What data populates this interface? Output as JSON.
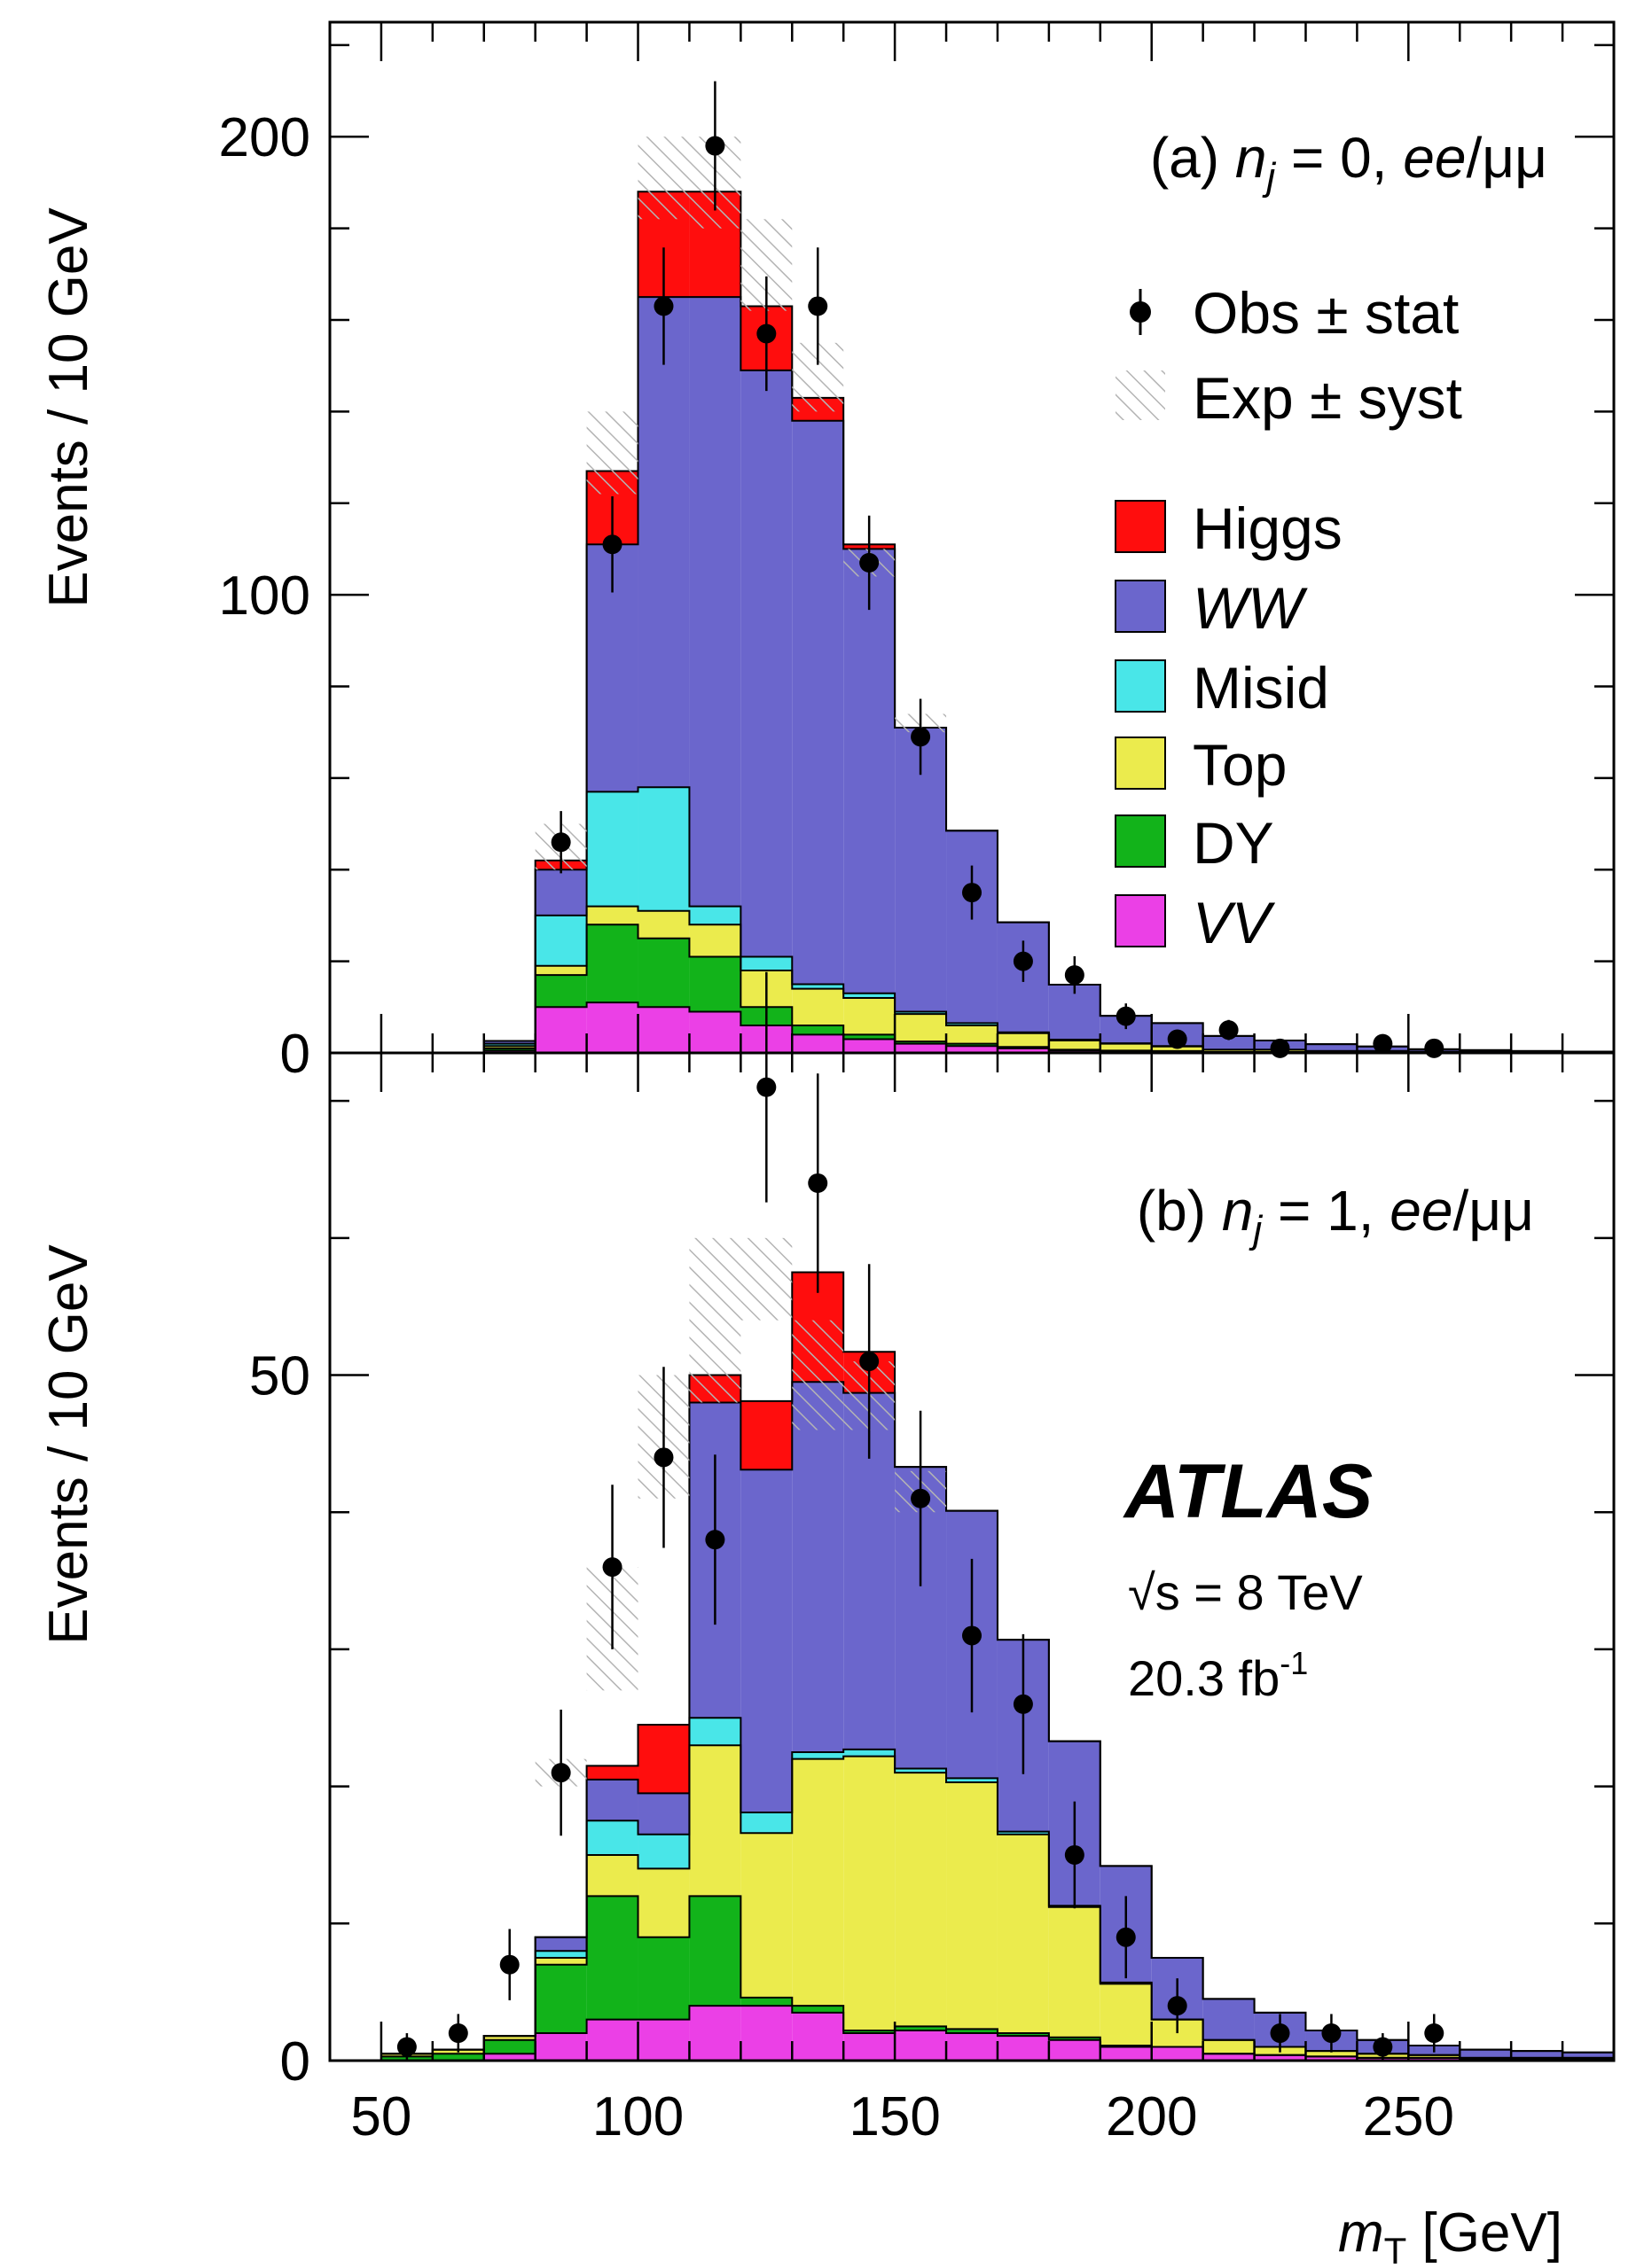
{
  "panel_a_label": "(a) n_j = 0, ee/μμ",
  "panel_b_label": "(b) n_j = 1, ee/μμ",
  "experiment": "ATLAS",
  "energy": "√s = 8 TeV",
  "luminosity_text": "20.3 fb",
  "luminosity_sup": "-1",
  "x_axis_label": "m_T [GeV]",
  "y_axis_label": "Events / 10 GeV",
  "legend": [
    {
      "key": "obs",
      "label": "Obs ± stat",
      "symbol": "marker"
    },
    {
      "key": "syst",
      "label": "Exp ± syst",
      "symbol": "hatch"
    },
    {
      "key": "higgs",
      "label": "Higgs",
      "color": "#ff0d0d",
      "italic": false
    },
    {
      "key": "ww",
      "label": "WW",
      "color": "#6b66cc",
      "italic": true
    },
    {
      "key": "misid",
      "label": "Misid",
      "color": "#49e6e8",
      "italic": false
    },
    {
      "key": "top",
      "label": "Top",
      "color": "#ebeb4d",
      "italic": false
    },
    {
      "key": "dy",
      "label": "DY",
      "color": "#12b31a",
      "italic": false
    },
    {
      "key": "vv",
      "label": "VV",
      "color": "#eb40e6",
      "italic": true
    }
  ],
  "chart_data": [
    {
      "type": "bar",
      "stacked": true,
      "panel": "a",
      "label": "(a) n_j = 0, ee/μμ",
      "bin_edges": [
        50,
        60,
        70,
        80,
        90,
        100,
        110,
        120,
        130,
        140,
        150,
        160,
        170,
        180,
        190,
        200,
        210,
        220,
        230,
        240,
        250,
        260,
        270,
        280,
        290
      ],
      "series": [
        {
          "key": "vv",
          "name": "VV",
          "values": [
            0,
            0,
            0.5,
            10,
            11,
            10,
            9,
            6,
            4,
            3,
            2,
            1.5,
            1,
            0.5,
            0.4,
            0.3,
            0.2,
            0.2,
            0.1,
            0.1,
            0.1,
            0.1,
            0,
            0
          ]
        },
        {
          "key": "dy",
          "name": "DY",
          "values": [
            0,
            0,
            0.5,
            7,
            17,
            15,
            12,
            4,
            2,
            1,
            0.5,
            0.5,
            0.3,
            0.2,
            0.1,
            0.1,
            0,
            0,
            0,
            0,
            0,
            0,
            0,
            0
          ]
        },
        {
          "key": "top",
          "name": "Top",
          "values": [
            0,
            0,
            0.5,
            2,
            4,
            6,
            7,
            8,
            8,
            8,
            6,
            4,
            3,
            2,
            1.5,
            1,
            0.5,
            0.5,
            0.3,
            0.3,
            0.2,
            0.1,
            0.1,
            0.1
          ]
        },
        {
          "key": "misid",
          "name": "Misid",
          "values": [
            0,
            0,
            0.5,
            11,
            25,
            27,
            4,
            3,
            1,
            1,
            0.5,
            0.5,
            0.2,
            0.2,
            0.1,
            0.1,
            0,
            0,
            0,
            0,
            0,
            0,
            0,
            0
          ]
        },
        {
          "key": "ww",
          "name": "WW",
          "values": [
            0,
            0,
            0.6,
            10,
            54,
            107,
            133,
            128,
            123,
            97,
            62,
            42,
            24,
            12,
            6,
            5,
            3,
            2,
            1.5,
            1,
            0.5,
            0.4,
            0.3,
            0.2
          ]
        },
        {
          "key": "higgs",
          "name": "Higgs",
          "values": [
            0,
            0,
            0,
            2,
            16,
            23,
            23,
            14,
            5,
            1,
            0,
            0,
            0,
            0,
            0,
            0,
            0,
            0,
            0,
            0,
            0,
            0,
            0,
            0
          ]
        }
      ],
      "syst_band": [
        [
          85,
          40,
          50
        ],
        [
          95,
          122,
          140
        ],
        [
          105,
          182,
          200
        ],
        [
          115,
          180,
          200
        ],
        [
          125,
          162,
          182
        ],
        [
          135,
          140,
          155
        ],
        [
          145,
          104,
          110
        ],
        [
          155,
          70,
          74
        ]
      ],
      "data_points": {
        "x": [
          85,
          95,
          105,
          115,
          125,
          135,
          145,
          155,
          165,
          175,
          185,
          195,
          205,
          215,
          225,
          245,
          255
        ],
        "y": [
          46,
          111,
          163,
          198,
          157,
          163,
          107,
          69,
          35,
          20,
          17,
          8,
          3,
          5,
          1,
          2,
          1
        ],
        "err": [
          6.8,
          10.5,
          12.8,
          14.1,
          12.5,
          12.8,
          10.3,
          8.3,
          5.9,
          4.5,
          4.1,
          2.8,
          1.7,
          2.2,
          1.0,
          1.4,
          1.0
        ]
      },
      "xlim": [
        40,
        290
      ],
      "ylim": [
        0,
        225
      ],
      "y_ticks": [
        0,
        100,
        200
      ],
      "ylabel": "Events / 10 GeV"
    },
    {
      "type": "bar",
      "stacked": true,
      "panel": "b",
      "label": "(b) n_j = 1, ee/μμ",
      "bin_edges": [
        50,
        60,
        70,
        80,
        90,
        100,
        110,
        120,
        130,
        140,
        150,
        160,
        170,
        180,
        190,
        200,
        210,
        220,
        230,
        240,
        250,
        260,
        270,
        280,
        290
      ],
      "series": [
        {
          "key": "vv",
          "name": "VV",
          "values": [
            0,
            0,
            0.5,
            2,
            3,
            3,
            4,
            4,
            3.5,
            2,
            2.2,
            2,
            1.8,
            1.5,
            1,
            1,
            0.5,
            0.4,
            0.3,
            0.2,
            0.2,
            0.1,
            0.1,
            0.1
          ]
        },
        {
          "key": "dy",
          "name": "DY",
          "values": [
            0.3,
            0.5,
            1,
            5,
            9,
            6,
            8,
            0.6,
            0.5,
            0.2,
            0.3,
            0.3,
            0.2,
            0.2,
            0.1,
            0,
            0,
            0,
            0,
            0,
            0,
            0,
            0,
            0
          ]
        },
        {
          "key": "top",
          "name": "Top",
          "values": [
            0.2,
            0.3,
            0.3,
            0.5,
            3,
            5,
            11,
            12,
            18,
            20,
            18.5,
            18,
            14.5,
            9.5,
            4.5,
            2,
            1,
            0.6,
            0.4,
            0.3,
            0.2,
            0.1,
            0.1,
            0.1
          ]
        },
        {
          "key": "misid",
          "name": "Misid",
          "values": [
            0,
            0,
            0,
            0.5,
            2.5,
            2.5,
            2,
            1.5,
            0.5,
            0.5,
            0.3,
            0.3,
            0.2,
            0.1,
            0.1,
            0,
            0,
            0,
            0,
            0,
            0,
            0,
            0,
            0
          ]
        },
        {
          "key": "ww",
          "name": "WW",
          "values": [
            0,
            0,
            0,
            1,
            3,
            3,
            23,
            25,
            27,
            26,
            22,
            19.5,
            14,
            12,
            8.5,
            4.5,
            3,
            2.5,
            1.5,
            1,
            0.7,
            0.6,
            0.5,
            0.4
          ]
        },
        {
          "key": "higgs",
          "name": "Higgs",
          "values": [
            0,
            0,
            0,
            0,
            1,
            5,
            2,
            5,
            8,
            3,
            0,
            0,
            0,
            0,
            0,
            0,
            0,
            0,
            0,
            0,
            0,
            0,
            0,
            0
          ]
        }
      ],
      "syst_band": [
        [
          85,
          20,
          22
        ],
        [
          95,
          27,
          36
        ],
        [
          105,
          41,
          50
        ],
        [
          115,
          48,
          60
        ],
        [
          125,
          54,
          60
        ],
        [
          135,
          46,
          54
        ],
        [
          145,
          46,
          51
        ],
        [
          155,
          40,
          43
        ]
      ],
      "data_points": {
        "x": [
          55,
          65,
          75,
          85,
          95,
          105,
          115,
          125,
          135,
          145,
          155,
          165,
          175,
          185,
          195,
          205,
          225,
          235,
          245,
          255
        ],
        "y": [
          1,
          2,
          7,
          21,
          36,
          44,
          38,
          71,
          64,
          51,
          41,
          31,
          26,
          15,
          9,
          4,
          2,
          2,
          1,
          2
        ],
        "err": [
          1.0,
          1.4,
          2.6,
          4.6,
          6.0,
          6.6,
          6.2,
          8.4,
          8.0,
          7.1,
          6.4,
          5.6,
          5.1,
          3.9,
          3.0,
          2.0,
          1.4,
          1.4,
          1.0,
          1.4
        ]
      },
      "xlim": [
        40,
        290
      ],
      "ylim": [
        0,
        73.5
      ],
      "x_ticks": [
        50,
        100,
        150,
        200,
        250
      ],
      "y_ticks": [
        0,
        50
      ],
      "xlabel": "m_T [GeV]",
      "ylabel": "Events / 10 GeV"
    }
  ]
}
